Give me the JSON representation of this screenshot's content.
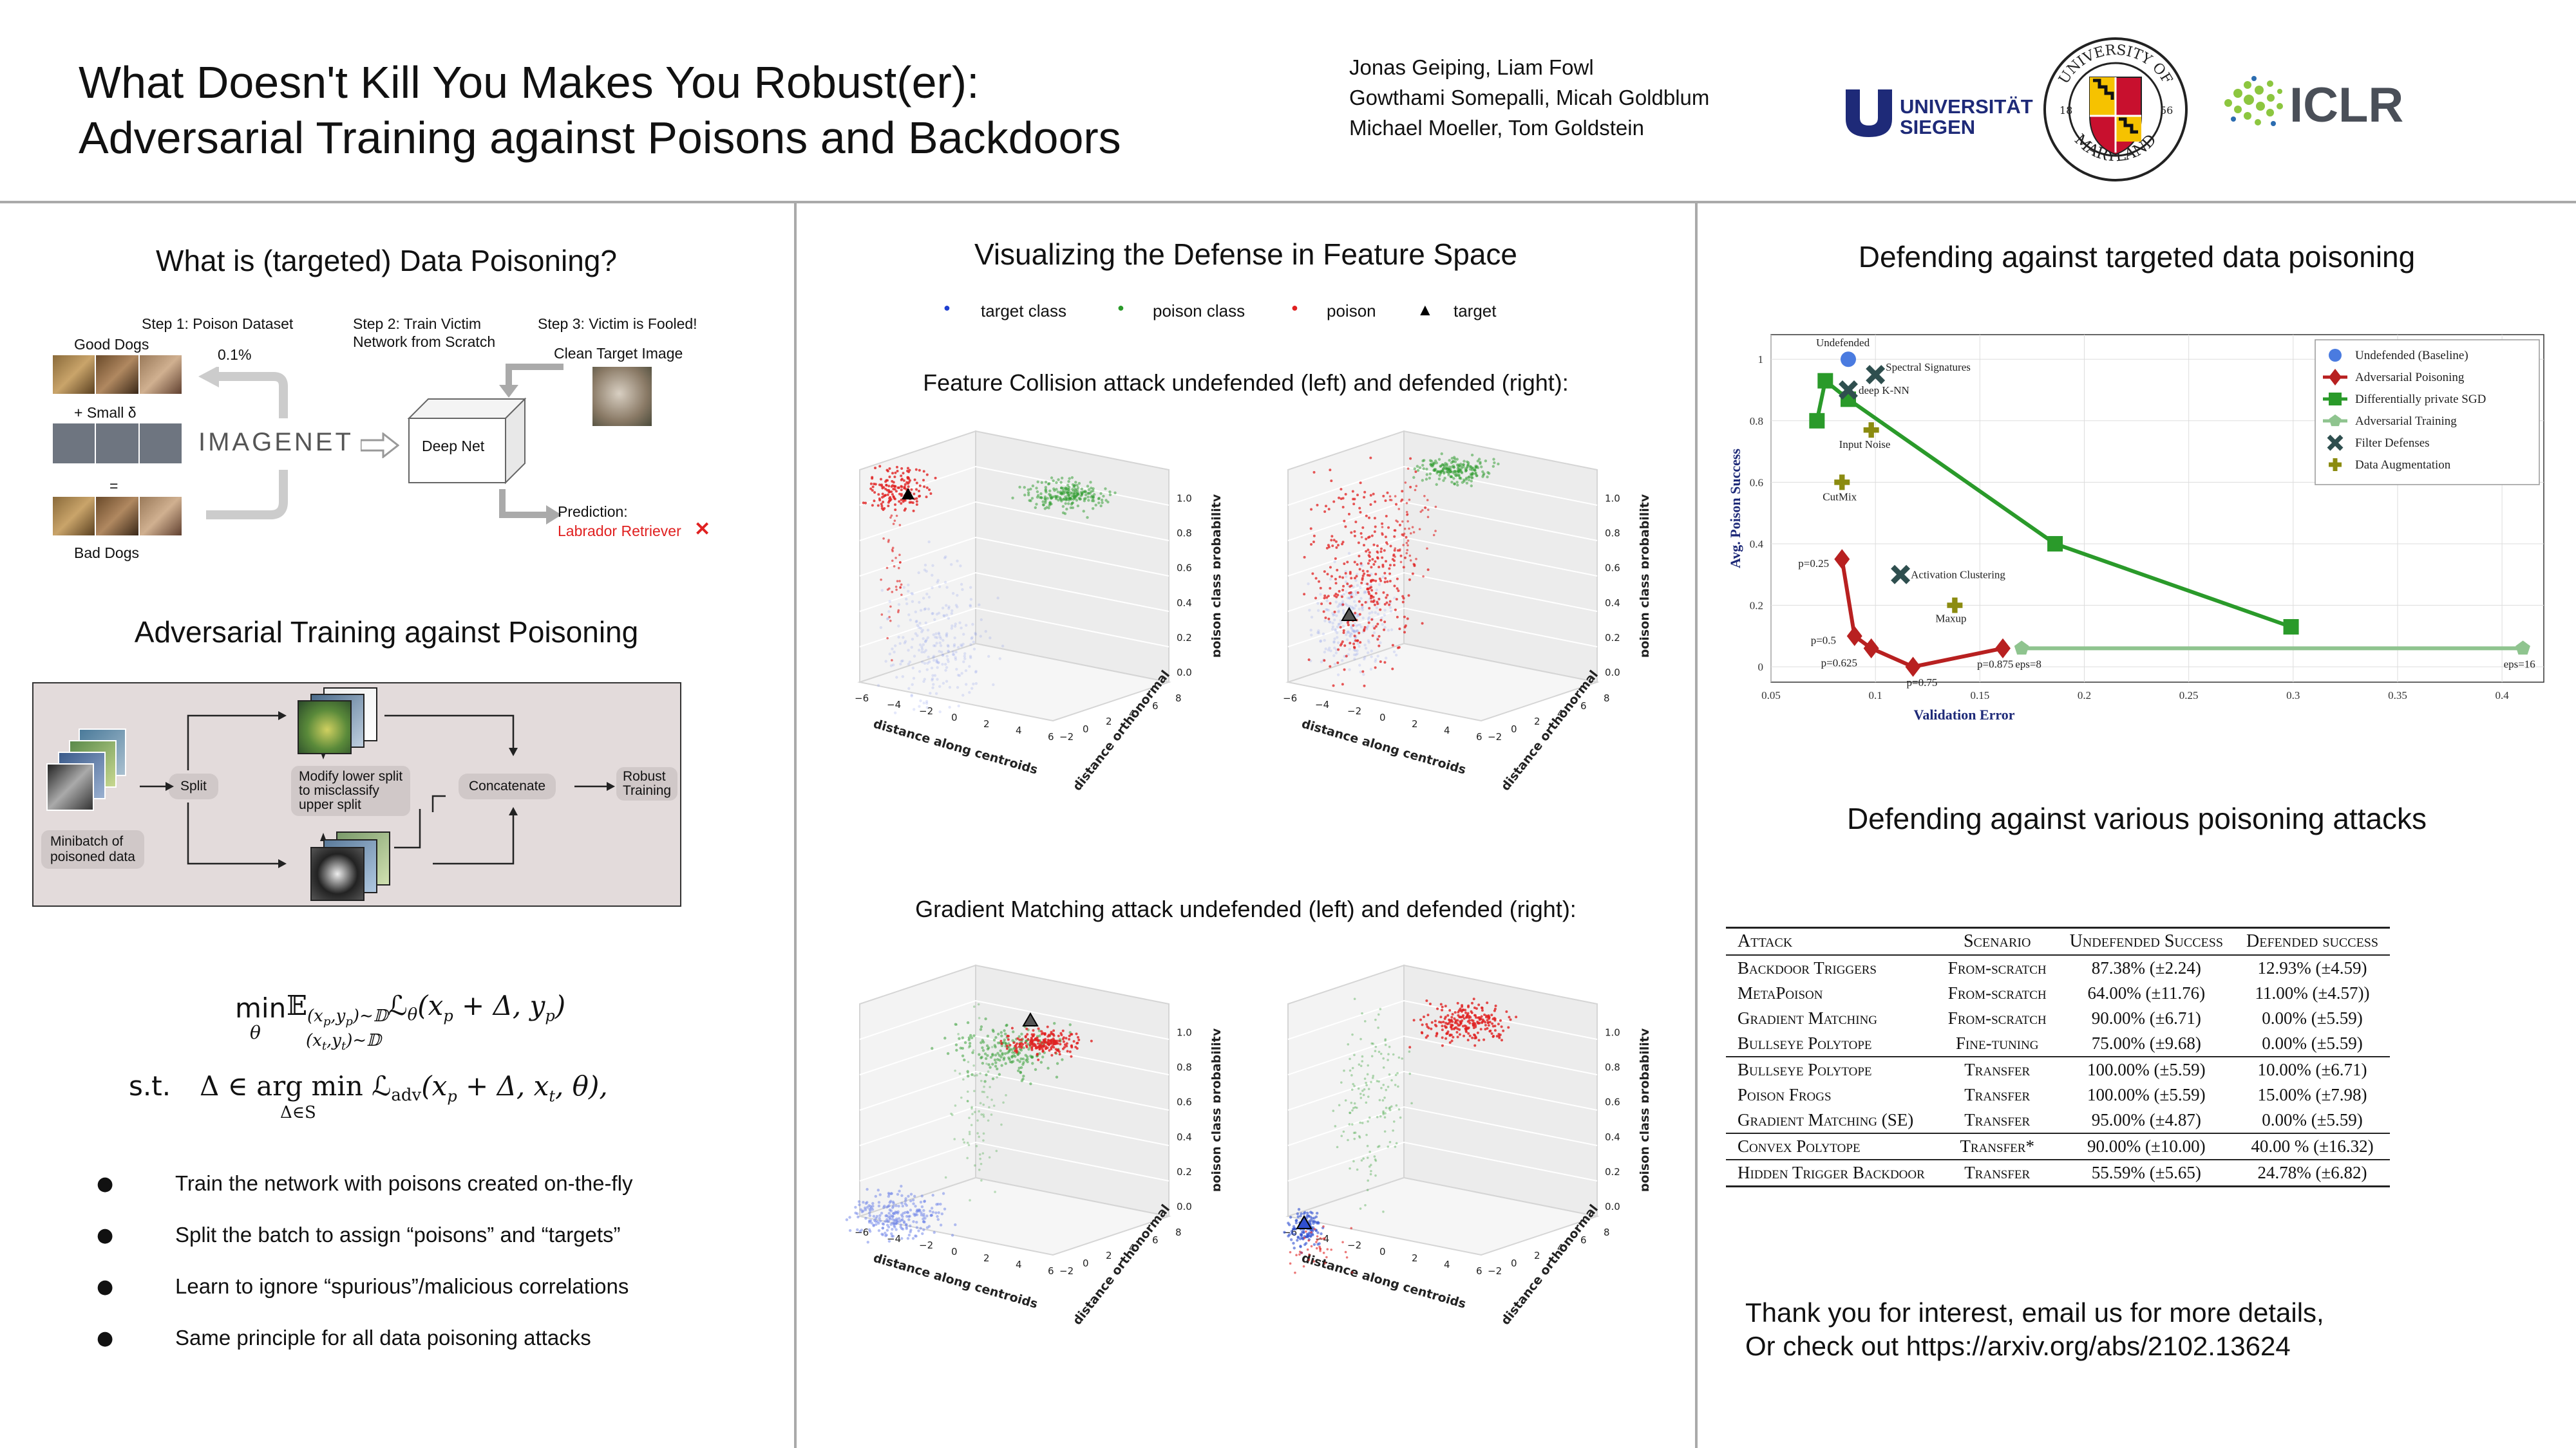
{
  "header": {
    "title_line1": "What Doesn't Kill You Makes You Robust(er):",
    "title_line2": "Adversarial Training against Poisons and Backdoors",
    "authors": [
      "Jonas Geiping, Liam Fowl",
      "Gowthami Somepalli, Micah Goldblum",
      "Michael Moeller, Tom Goldstein"
    ],
    "logos": {
      "siegen_line1": "UNIVERSITÄT",
      "siegen_line2": "SIEGEN",
      "maryland_top": "UNIVERSITY OF",
      "maryland_bottom": "MARYLAND",
      "maryland_year_left": "18",
      "maryland_year_right": "56",
      "iclr": "ICLR"
    }
  },
  "left": {
    "poisoning_title": "What is (targeted) Data Poisoning?",
    "diagram": {
      "step1": "Step 1: Poison Dataset",
      "step2_line1": "Step 2: Train Victim",
      "step2_line2": "Network from Scratch",
      "step3": "Step 3: Victim is Fooled!",
      "good_dogs": "Good Dogs",
      "pct": "0.1%",
      "plus_delta": "+ Small δ",
      "equals": "=",
      "bad_dogs": "Bad Dogs",
      "imagenet": "IMAGENET",
      "deep_net": "Deep Net",
      "clean_target": "Clean Target Image",
      "prediction": "Prediction:",
      "prediction_value": "Labrador Retriever",
      "cross": "✕"
    },
    "adv_title": "Adversarial Training against Poisoning",
    "flow": {
      "split": "Split",
      "minibatch_line1": "Minibatch of",
      "minibatch_line2": "poisoned data",
      "modify_line1": "Modify lower split",
      "modify_line2": "to misclassify",
      "modify_line3": "upper split",
      "concatenate": "Concatenate",
      "robust_line1": "Robust",
      "robust_line2": "Training"
    },
    "formula": {
      "min": "min",
      "theta": "θ",
      "expect": "𝔼",
      "sub1": "(x",
      "line1_rest": "ℒ",
      "st": "s.t.",
      "line2": "Δ ∈ arg min ℒ",
      "adv": "adv",
      "sub_delta": "Δ∈S"
    },
    "bullets": [
      "Train the network with poisons created on-the-fly",
      "Split the batch to assign “poisons” and “targets”",
      "Learn to ignore “spurious”/malicious correlations",
      "Same principle for all data poisoning attacks"
    ],
    "bullet_symbol": "●"
  },
  "middle": {
    "title": "Visualizing the Defense in Feature Space",
    "legend": [
      {
        "label": "target class",
        "color": "#1f3fd0",
        "symbol": "●"
      },
      {
        "label": "poison class",
        "color": "#2a9a2a",
        "symbol": "●"
      },
      {
        "label": "poison",
        "color": "#e02020",
        "symbol": "●"
      },
      {
        "label": "target",
        "color": "#000000",
        "symbol": "▲"
      }
    ],
    "fc_caption": "Feature Collision attack undefended (left) and defended (right):",
    "gm_caption": "Gradient Matching attack undefended (left) and defended (right):",
    "axis_x": "distance along centroids",
    "axis_y": "distance orthonormal",
    "axis_z": "poison class probability",
    "z_ticks": [
      "0.0",
      "0.2",
      "0.4",
      "0.6",
      "0.8",
      "1.0"
    ],
    "x_ticks": [
      "−6",
      "−4",
      "−2",
      "0",
      "2",
      "4",
      "6"
    ],
    "y_ticks": [
      "−2",
      "0",
      "2",
      "4",
      "6",
      "8"
    ]
  },
  "right": {
    "defend_title": "Defending against targeted data poisoning",
    "various_title": "Defending against various poisoning attacks",
    "thanks_line1": "Thank you for interest, email us for more details,",
    "thanks_line2": "Or check out https://arxiv.org/abs/2102.13624"
  },
  "chart_data": {
    "type": "scatter",
    "title": "",
    "xlabel": "Validation Error",
    "ylabel": "Avg. Poison Success",
    "xlim": [
      0.05,
      0.42
    ],
    "ylim": [
      -0.05,
      1.08
    ],
    "x_ticks": [
      0.05,
      0.1,
      0.15,
      0.2,
      0.25,
      0.3,
      0.35,
      0.4
    ],
    "x_tick_labels": [
      "0.05",
      "0.1",
      "0.15",
      "0.2",
      "0.25",
      "0.3",
      "0.35",
      "0.4"
    ],
    "y_ticks": [
      0,
      0.2,
      0.4,
      0.6,
      0.8,
      1
    ],
    "y_tick_labels": [
      "0",
      "0.2",
      "0.4",
      "0.6",
      "0.8",
      "1"
    ],
    "grid": true,
    "legend_position": "top-right",
    "series": [
      {
        "name": "Undefended (Baseline)",
        "color": "#4a7be0",
        "marker": "circle",
        "line": false,
        "points": [
          [
            0.087,
            1.0
          ]
        ]
      },
      {
        "name": "Adversarial Poisoning",
        "color": "#b82020",
        "marker": "diamond",
        "line": true,
        "points": [
          [
            0.084,
            0.35
          ],
          [
            0.09,
            0.1
          ],
          [
            0.098,
            0.06
          ],
          [
            0.118,
            0.0
          ],
          [
            0.161,
            0.06
          ]
        ]
      },
      {
        "name": "Differentially private SGD",
        "color": "#2a9a2a",
        "marker": "square",
        "line": true,
        "points": [
          [
            0.072,
            0.8
          ],
          [
            0.076,
            0.93
          ],
          [
            0.087,
            0.87
          ],
          [
            0.186,
            0.4
          ],
          [
            0.299,
            0.13
          ]
        ]
      },
      {
        "name": "Adversarial Training",
        "color": "#8fc48f",
        "marker": "pentagon",
        "line": true,
        "points": [
          [
            0.17,
            0.06
          ],
          [
            0.41,
            0.06
          ]
        ]
      },
      {
        "name": "Filter Defenses",
        "color": "#2f4f4f",
        "marker": "x",
        "line": false,
        "points": [
          [
            0.1,
            0.95
          ],
          [
            0.087,
            0.9
          ],
          [
            0.112,
            0.3
          ]
        ]
      },
      {
        "name": "Data Augmentation",
        "color": "#8b8b10",
        "marker": "plus",
        "line": false,
        "points": [
          [
            0.098,
            0.77
          ],
          [
            0.084,
            0.6
          ],
          [
            0.138,
            0.2
          ]
        ]
      }
    ],
    "annotations": [
      {
        "text": "Undefended",
        "x": 0.087,
        "y": 1.0
      },
      {
        "text": "Spectral Signatures",
        "x": 0.1,
        "y": 0.95
      },
      {
        "text": "deep K-NN",
        "x": 0.087,
        "y": 0.9
      },
      {
        "text": "Input Noise",
        "x": 0.098,
        "y": 0.77
      },
      {
        "text": "CutMix",
        "x": 0.084,
        "y": 0.6
      },
      {
        "text": "Activation Clustering",
        "x": 0.112,
        "y": 0.3
      },
      {
        "text": "Maxup",
        "x": 0.138,
        "y": 0.2
      },
      {
        "text": "p=0.25",
        "x": 0.084,
        "y": 0.35
      },
      {
        "text": "p=0.5",
        "x": 0.09,
        "y": 0.1
      },
      {
        "text": "p=0.625",
        "x": 0.098,
        "y": 0.06
      },
      {
        "text": "p=0.75",
        "x": 0.118,
        "y": 0.0
      },
      {
        "text": "p=0.875",
        "x": 0.161,
        "y": 0.06
      },
      {
        "text": "eps=8",
        "x": 0.17,
        "y": 0.06
      },
      {
        "text": "eps=16",
        "x": 0.41,
        "y": 0.06
      }
    ]
  },
  "table": {
    "headers": [
      "Attack",
      "Scenario",
      "Undefended Success",
      "Defended success"
    ],
    "groups": [
      [
        [
          "Backdoor Triggers",
          "From-scratch",
          "87.38% (±2.24)",
          "12.93% (±4.59)"
        ],
        [
          "MetaPoison",
          "From-scratch",
          "64.00% (±11.76)",
          "11.00% (±4.57))"
        ],
        [
          "Gradient Matching",
          "From-scratch",
          "90.00% (±6.71)",
          "0.00% (±5.59)"
        ],
        [
          "Bullseye Polytope",
          "Fine-tuning",
          "75.00% (±9.68)",
          "0.00% (±5.59)"
        ]
      ],
      [
        [
          "Bullseye Polytope",
          "Transfer",
          "100.00% (±5.59)",
          "10.00% (±6.71)"
        ],
        [
          "Poison Frogs",
          "Transfer",
          "100.00% (±5.59)",
          "15.00% (±7.98)"
        ],
        [
          "Gradient Matching (SE)",
          "Transfer",
          "95.00% (±4.87)",
          "0.00% (±5.59)"
        ]
      ],
      [
        [
          "Convex Polytope",
          "Transfer*",
          "90.00% (±10.00)",
          "40.00 % (±16.32)"
        ]
      ],
      [
        [
          "Hidden Trigger Backdoor",
          "Transfer",
          "55.59% (±5.65)",
          "24.78% (±6.82)"
        ]
      ]
    ]
  }
}
